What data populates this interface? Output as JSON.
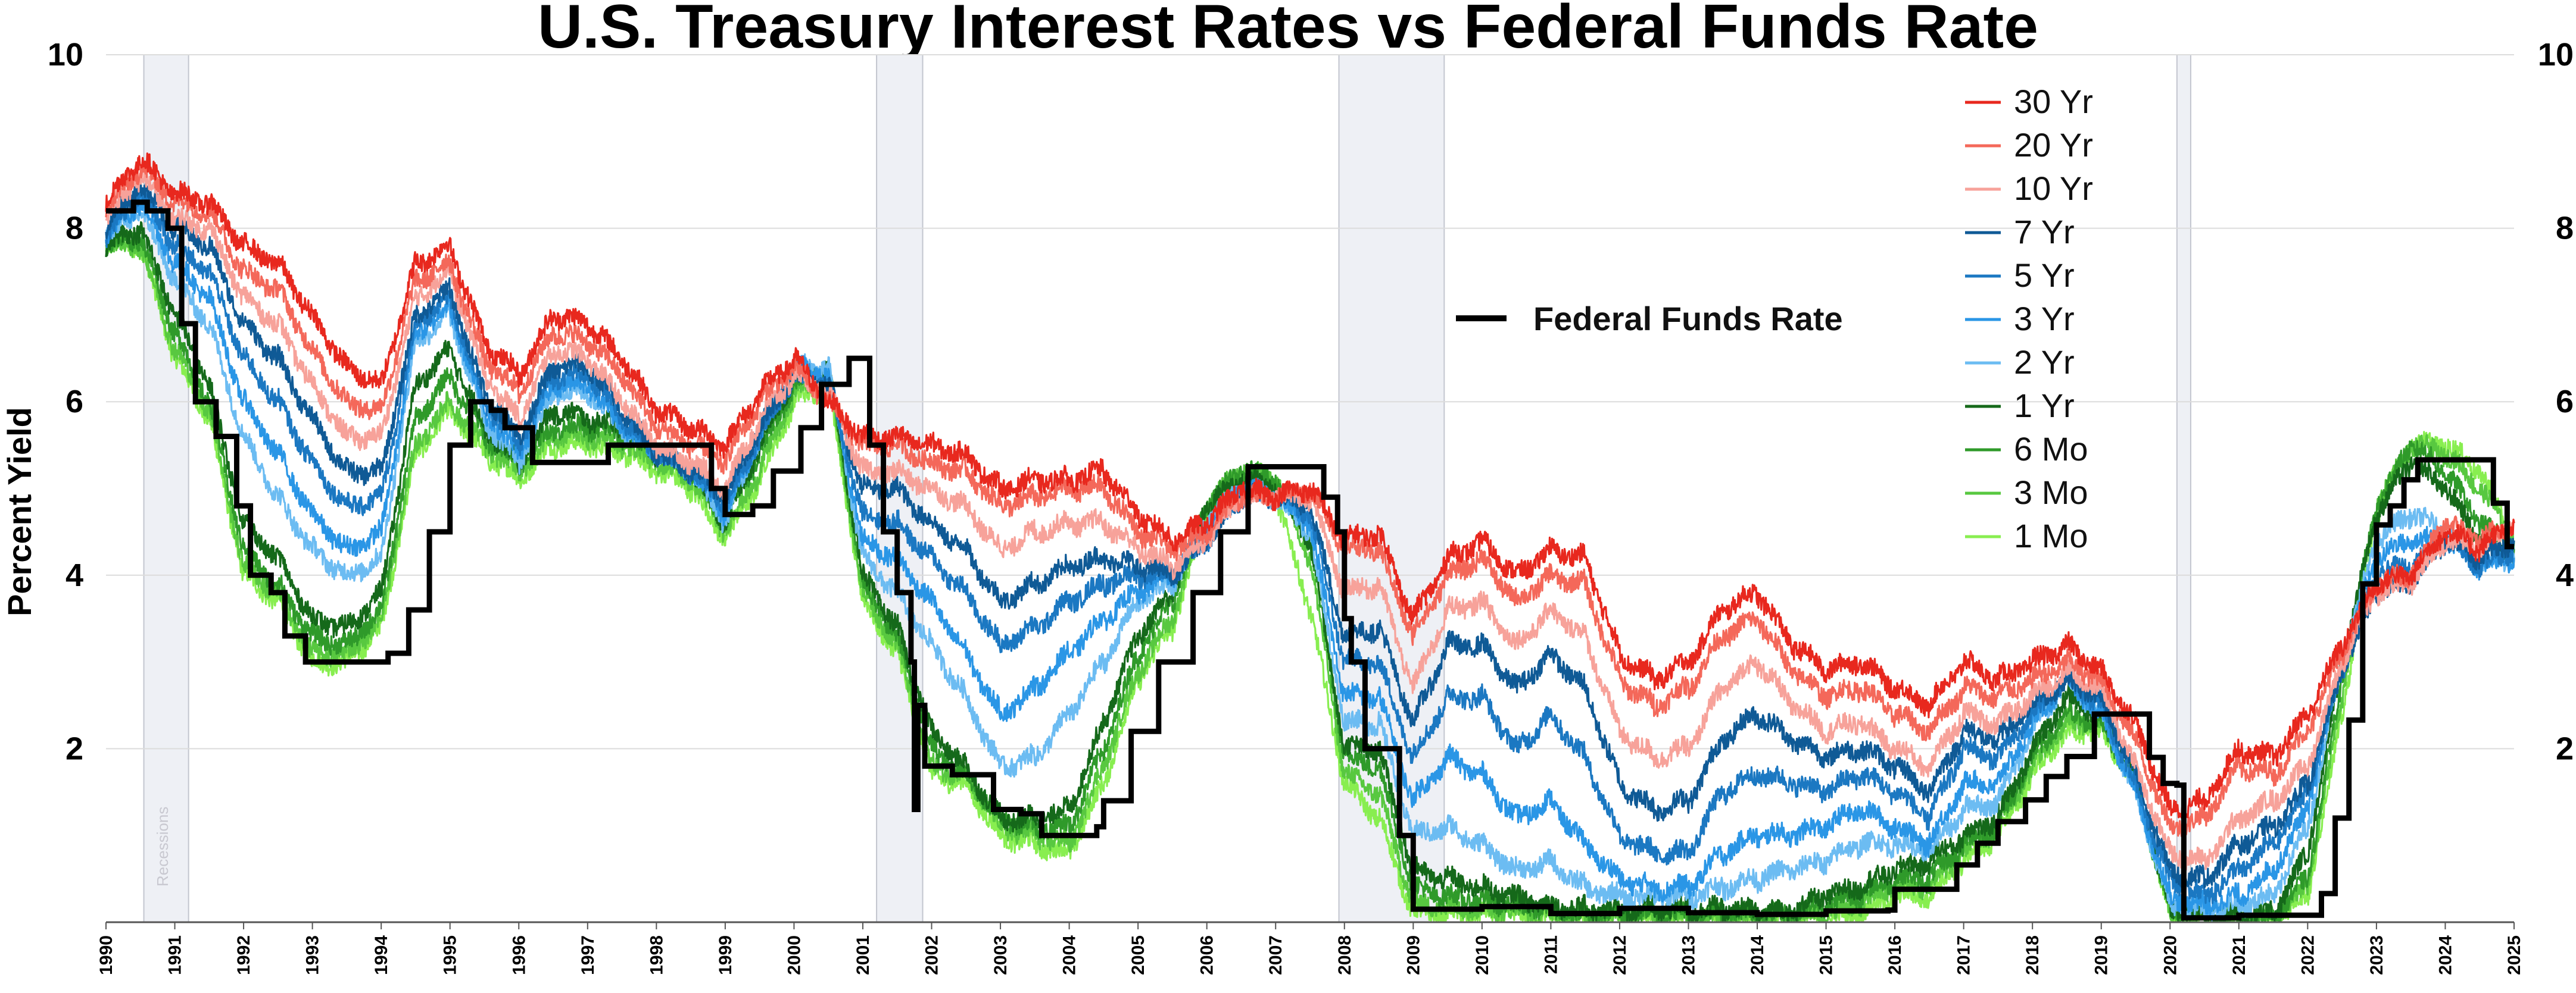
{
  "chart_data": {
    "type": "line",
    "title": "U.S. Treasury Interest Rates vs Federal Funds Rate",
    "ylabel": "Percent Yield",
    "xlabel": "",
    "xlim": [
      1990,
      2025
    ],
    "ylim": [
      0,
      10
    ],
    "yticks": [
      2,
      4,
      6,
      8,
      10
    ],
    "yticks_right": [
      2,
      4,
      6,
      8,
      10
    ],
    "xticks": [
      "1990",
      "1991",
      "1992",
      "1993",
      "1994",
      "1995",
      "1996",
      "1997",
      "1998",
      "1999",
      "2000",
      "2001",
      "2002",
      "2003",
      "2004",
      "2005",
      "2006",
      "2007",
      "2008",
      "2009",
      "2010",
      "2011",
      "2012",
      "2013",
      "2014",
      "2015",
      "2016",
      "2017",
      "2018",
      "2019",
      "2020",
      "2021",
      "2022",
      "2023",
      "2024",
      "2025"
    ],
    "grid": "horizontal",
    "legend_position": "top-right",
    "recession_label": "Recessions",
    "recessions": [
      [
        1990.55,
        1991.2
      ],
      [
        2001.2,
        2001.87
      ],
      [
        2007.92,
        2009.45
      ],
      [
        2020.1,
        2020.3
      ]
    ],
    "x": [
      1990,
      1990.5,
      1991,
      1991.5,
      1992,
      1992.5,
      1993,
      1993.5,
      1994,
      1994.5,
      1995,
      1995.5,
      1996,
      1996.5,
      1997,
      1997.5,
      1998,
      1998.5,
      1999,
      1999.5,
      2000,
      2000.5,
      2001,
      2001.5,
      2002,
      2002.5,
      2003,
      2003.5,
      2004,
      2004.5,
      2005,
      2005.5,
      2006,
      2006.5,
      2007,
      2007.5,
      2008,
      2008.5,
      2009,
      2009.5,
      2010,
      2010.5,
      2011,
      2011.5,
      2012,
      2012.5,
      2013,
      2013.5,
      2014,
      2014.5,
      2015,
      2015.5,
      2016,
      2016.5,
      2017,
      2017.5,
      2018,
      2018.5,
      2019,
      2019.5,
      2020,
      2020.5,
      2021,
      2021.5,
      2022,
      2022.5,
      2023,
      2023.5,
      2024,
      2024.5,
      2025
    ],
    "series": [
      {
        "name": "30 Yr",
        "color": "#e8281e",
        "values": [
          8.3,
          8.8,
          8.4,
          8.3,
          7.8,
          7.6,
          7.0,
          6.4,
          6.2,
          7.6,
          7.8,
          6.7,
          6.3,
          7.0,
          6.9,
          6.5,
          5.9,
          5.7,
          5.5,
          6.1,
          6.5,
          6.0,
          5.6,
          5.6,
          5.5,
          5.4,
          5.0,
          5.1,
          5.1,
          5.2,
          4.7,
          4.4,
          4.6,
          5.0,
          4.9,
          5.0,
          4.4,
          4.5,
          3.5,
          4.2,
          4.4,
          4.0,
          4.3,
          4.2,
          3.1,
          2.8,
          3.0,
          3.6,
          3.8,
          3.2,
          2.9,
          3.0,
          2.7,
          2.5,
          3.0,
          2.8,
          3.0,
          3.2,
          2.9,
          2.3,
          1.3,
          1.4,
          2.0,
          1.9,
          2.4,
          3.2,
          3.9,
          4.0,
          4.5,
          4.3,
          4.6
        ]
      },
      {
        "name": "20 Yr",
        "color": "#f4685a",
        "values": [
          8.2,
          8.7,
          8.3,
          8.2,
          7.5,
          7.3,
          6.6,
          6.0,
          5.9,
          7.4,
          7.6,
          6.5,
          6.1,
          6.8,
          6.7,
          6.3,
          5.7,
          5.5,
          5.3,
          6.0,
          6.4,
          6.0,
          5.5,
          5.5,
          5.3,
          5.2,
          4.8,
          4.9,
          5.0,
          5.0,
          4.5,
          4.3,
          4.5,
          4.9,
          4.9,
          5.0,
          4.3,
          4.3,
          3.3,
          4.0,
          4.2,
          3.7,
          4.0,
          3.9,
          2.8,
          2.5,
          2.7,
          3.3,
          3.5,
          2.9,
          2.6,
          2.7,
          2.4,
          2.2,
          2.7,
          2.6,
          2.8,
          3.0,
          2.8,
          2.1,
          1.1,
          1.2,
          1.8,
          1.7,
          2.2,
          3.1,
          3.9,
          4.0,
          4.6,
          4.4,
          4.6
        ]
      },
      {
        "name": "10 Yr",
        "color": "#f7a29a",
        "values": [
          8.1,
          8.6,
          8.1,
          8.0,
          7.2,
          6.9,
          6.2,
          5.6,
          5.6,
          7.2,
          7.5,
          6.3,
          5.8,
          6.6,
          6.5,
          6.0,
          5.5,
          5.3,
          5.0,
          5.8,
          6.3,
          6.1,
          5.2,
          5.2,
          5.0,
          4.8,
          4.3,
          4.5,
          4.6,
          4.6,
          4.3,
          4.1,
          4.4,
          4.9,
          4.9,
          4.9,
          3.8,
          3.9,
          2.7,
          3.6,
          3.7,
          3.2,
          3.6,
          3.3,
          2.2,
          1.9,
          2.0,
          2.7,
          3.0,
          2.5,
          2.2,
          2.3,
          2.0,
          1.8,
          2.4,
          2.3,
          2.6,
          2.9,
          2.7,
          1.8,
          0.8,
          0.7,
          1.2,
          1.4,
          1.8,
          3.0,
          3.8,
          3.9,
          4.4,
          4.3,
          4.6
        ]
      },
      {
        "name": "7 Yr",
        "color": "#0f5a96",
        "values": [
          8.0,
          8.5,
          8.0,
          7.8,
          6.9,
          6.5,
          5.8,
          5.2,
          5.2,
          7.0,
          7.3,
          6.1,
          5.6,
          6.4,
          6.4,
          5.9,
          5.4,
          5.2,
          4.9,
          5.7,
          6.3,
          6.2,
          5.0,
          5.0,
          4.6,
          4.3,
          3.7,
          3.9,
          4.1,
          4.2,
          4.1,
          4.0,
          4.4,
          4.9,
          4.9,
          4.8,
          3.3,
          3.4,
          2.3,
          3.2,
          3.2,
          2.7,
          3.1,
          2.7,
          1.6,
          1.3,
          1.4,
          2.1,
          2.4,
          2.1,
          1.9,
          2.0,
          1.8,
          1.5,
          2.2,
          2.1,
          2.5,
          2.8,
          2.6,
          1.7,
          0.6,
          0.5,
          0.9,
          1.1,
          1.6,
          2.9,
          3.8,
          3.9,
          4.4,
          4.2,
          4.4
        ]
      },
      {
        "name": "5 Yr",
        "color": "#1b78c2",
        "values": [
          7.9,
          8.4,
          7.8,
          7.5,
          6.5,
          6.0,
          5.3,
          4.8,
          4.9,
          6.9,
          7.2,
          6.0,
          5.5,
          6.3,
          6.3,
          5.8,
          5.4,
          5.2,
          4.8,
          5.6,
          6.3,
          6.2,
          4.7,
          4.6,
          4.2,
          3.8,
          3.2,
          3.4,
          3.7,
          3.9,
          4.0,
          4.0,
          4.4,
          4.9,
          4.9,
          4.7,
          3.0,
          3.0,
          1.9,
          2.6,
          2.6,
          2.0,
          2.4,
          1.9,
          1.0,
          0.8,
          0.8,
          1.5,
          1.7,
          1.6,
          1.5,
          1.7,
          1.5,
          1.2,
          2.0,
          1.9,
          2.4,
          2.8,
          2.5,
          1.6,
          0.5,
          0.3,
          0.6,
          0.9,
          1.5,
          2.9,
          4.0,
          4.1,
          4.4,
          4.1,
          4.3
        ]
      },
      {
        "name": "3 Yr",
        "color": "#2a96e6",
        "values": [
          7.9,
          8.3,
          7.6,
          7.2,
          6.0,
          5.4,
          4.7,
          4.3,
          4.5,
          6.8,
          7.1,
          5.9,
          5.4,
          6.2,
          6.2,
          5.7,
          5.4,
          5.2,
          4.7,
          5.6,
          6.4,
          6.3,
          4.4,
          4.2,
          3.7,
          3.1,
          2.4,
          2.7,
          3.1,
          3.5,
          3.8,
          4.0,
          4.5,
          5.0,
          4.9,
          4.6,
          2.6,
          2.6,
          1.4,
          1.9,
          1.7,
          1.2,
          1.4,
          0.9,
          0.5,
          0.4,
          0.4,
          0.8,
          1.0,
          1.0,
          1.1,
          1.3,
          1.1,
          0.9,
          1.6,
          1.6,
          2.3,
          2.8,
          2.4,
          1.5,
          0.3,
          0.2,
          0.3,
          0.6,
          1.3,
          3.0,
          4.2,
          4.4,
          4.4,
          4.1,
          4.2
        ]
      },
      {
        "name": "2 Yr",
        "color": "#6cbcf2",
        "values": [
          7.9,
          8.2,
          7.4,
          6.9,
          5.6,
          4.9,
          4.3,
          4.0,
          4.2,
          6.7,
          7.0,
          5.8,
          5.3,
          6.1,
          6.1,
          5.7,
          5.4,
          5.2,
          4.6,
          5.6,
          6.4,
          6.4,
          4.2,
          3.8,
          3.2,
          2.6,
          1.8,
          1.9,
          2.4,
          3.0,
          3.7,
          3.9,
          4.6,
          5.0,
          4.9,
          4.5,
          2.3,
          2.3,
          1.0,
          1.1,
          0.9,
          0.6,
          0.7,
          0.4,
          0.3,
          0.3,
          0.3,
          0.4,
          0.5,
          0.6,
          0.7,
          0.9,
          0.9,
          0.8,
          1.3,
          1.4,
          2.2,
          2.8,
          2.4,
          1.5,
          0.2,
          0.15,
          0.2,
          0.3,
          1.1,
          3.0,
          4.4,
          4.7,
          4.5,
          4.1,
          4.2
        ]
      },
      {
        "name": "1 Yr",
        "color": "#15691a",
        "values": [
          7.8,
          8.0,
          7.0,
          6.2,
          4.6,
          4.2,
          3.5,
          3.4,
          3.8,
          6.2,
          6.6,
          5.7,
          5.3,
          5.9,
          5.8,
          5.7,
          5.4,
          5.2,
          4.6,
          5.5,
          6.3,
          6.4,
          4.0,
          3.4,
          2.2,
          1.8,
          1.2,
          1.2,
          1.3,
          2.3,
          3.3,
          3.8,
          4.8,
          5.1,
          5.0,
          4.4,
          2.0,
          2.0,
          0.6,
          0.5,
          0.4,
          0.3,
          0.2,
          0.15,
          0.15,
          0.15,
          0.15,
          0.15,
          0.12,
          0.12,
          0.3,
          0.4,
          0.6,
          0.7,
          1.0,
          1.2,
          2.0,
          2.6,
          2.4,
          1.6,
          0.15,
          0.1,
          0.08,
          0.1,
          0.8,
          3.0,
          4.7,
          5.3,
          5.0,
          4.4,
          4.2
        ]
      },
      {
        "name": "6 Mo",
        "color": "#2f9a2a",
        "values": [
          7.8,
          7.9,
          6.8,
          6.0,
          4.3,
          3.9,
          3.3,
          3.2,
          3.6,
          5.8,
          6.3,
          5.6,
          5.3,
          5.7,
          5.7,
          5.6,
          5.4,
          5.2,
          4.6,
          5.4,
          6.2,
          6.4,
          3.9,
          3.3,
          2.0,
          1.7,
          1.2,
          1.1,
          1.1,
          2.0,
          3.1,
          3.7,
          4.8,
          5.2,
          5.1,
          4.4,
          1.9,
          1.8,
          0.4,
          0.3,
          0.25,
          0.2,
          0.15,
          0.1,
          0.1,
          0.1,
          0.1,
          0.1,
          0.08,
          0.08,
          0.2,
          0.3,
          0.5,
          0.5,
          0.9,
          1.1,
          1.9,
          2.4,
          2.3,
          1.6,
          0.12,
          0.08,
          0.06,
          0.06,
          0.5,
          2.8,
          4.8,
          5.5,
          5.2,
          4.6,
          4.3
        ]
      },
      {
        "name": "3 Mo",
        "color": "#58c840",
        "values": [
          7.8,
          7.8,
          6.6,
          5.9,
          4.1,
          3.8,
          3.1,
          3.1,
          3.5,
          5.5,
          6.0,
          5.5,
          5.2,
          5.6,
          5.6,
          5.5,
          5.3,
          5.1,
          4.5,
          5.2,
          6.1,
          6.3,
          3.8,
          3.2,
          1.8,
          1.7,
          1.1,
          1.0,
          0.9,
          1.8,
          2.9,
          3.5,
          4.8,
          5.2,
          5.1,
          4.2,
          1.7,
          1.5,
          0.2,
          0.2,
          0.15,
          0.15,
          0.1,
          0.05,
          0.08,
          0.08,
          0.06,
          0.06,
          0.04,
          0.04,
          0.1,
          0.2,
          0.4,
          0.4,
          0.8,
          1.1,
          1.8,
          2.3,
          2.3,
          1.6,
          0.1,
          0.06,
          0.04,
          0.04,
          0.4,
          2.6,
          4.8,
          5.5,
          5.4,
          5.0,
          4.4
        ]
      },
      {
        "name": "1 Mo",
        "color": "#88ee50",
        "values": [
          7.8,
          7.8,
          6.5,
          5.8,
          4.0,
          3.7,
          3.0,
          3.0,
          3.4,
          5.4,
          5.9,
          5.4,
          5.1,
          5.5,
          5.5,
          5.4,
          5.2,
          5.0,
          4.4,
          5.1,
          6.0,
          6.2,
          3.7,
          3.1,
          1.7,
          1.6,
          1.0,
          0.9,
          0.8,
          1.6,
          2.8,
          3.4,
          4.7,
          5.1,
          4.9,
          3.6,
          1.6,
          1.2,
          0.1,
          0.1,
          0.1,
          0.1,
          0.05,
          0.02,
          0.05,
          0.05,
          0.03,
          0.03,
          0.02,
          0.02,
          0.03,
          0.1,
          0.3,
          0.3,
          0.7,
          1.0,
          1.7,
          2.2,
          2.2,
          1.6,
          0.08,
          0.05,
          0.03,
          0.03,
          0.3,
          2.4,
          4.7,
          5.5,
          5.5,
          5.2,
          4.4
        ]
      }
    ],
    "fed_funds": {
      "name": "Federal Funds Rate",
      "color": "#000000",
      "x": [
        1990,
        1990.4,
        1990.6,
        1990.9,
        1991.1,
        1991.3,
        1991.6,
        1991.9,
        1992.1,
        1992.4,
        1992.6,
        1992.9,
        1993.5,
        1993.9,
        1994.1,
        1994.4,
        1994.7,
        1995.0,
        1995.3,
        1995.6,
        1995.8,
        1996.2,
        1996.6,
        1997.0,
        1997.3,
        1997.7,
        1998.2,
        1998.6,
        1998.8,
        1999.0,
        1999.4,
        1999.7,
        2000.1,
        2000.4,
        2000.8,
        2001.0,
        2001.1,
        2001.3,
        2001.5,
        2001.7,
        2001.75,
        2001.8,
        2001.9,
        2002.3,
        2002.9,
        2003.3,
        2003.6,
        2004.0,
        2004.4,
        2004.5,
        2004.9,
        2005.3,
        2005.8,
        2006.2,
        2006.6,
        2007.0,
        2007.5,
        2007.7,
        2007.9,
        2008.0,
        2008.1,
        2008.3,
        2008.7,
        2008.8,
        2009.0,
        2010.0,
        2011.0,
        2012.0,
        2013.0,
        2014.0,
        2015.0,
        2015.9,
        2016.0,
        2016.9,
        2017.2,
        2017.5,
        2017.9,
        2018.2,
        2018.5,
        2018.9,
        2019.5,
        2019.7,
        2019.9,
        2020.1,
        2020.2,
        2021.0,
        2022.0,
        2022.2,
        2022.4,
        2022.6,
        2022.8,
        2023.0,
        2023.2,
        2023.4,
        2023.6,
        2024.0,
        2024.5,
        2024.7,
        2024.9,
        2025.0
      ],
      "values": [
        8.2,
        8.3,
        8.2,
        8.0,
        6.9,
        6.0,
        5.6,
        4.8,
        4.0,
        3.8,
        3.3,
        3.0,
        3.0,
        3.0,
        3.1,
        3.6,
        4.5,
        5.5,
        6.0,
        5.9,
        5.7,
        5.3,
        5.3,
        5.3,
        5.5,
        5.5,
        5.5,
        5.5,
        5.0,
        4.7,
        4.8,
        5.2,
        5.7,
        6.2,
        6.5,
        6.5,
        5.5,
        4.5,
        3.8,
        3.0,
        1.3,
        2.5,
        1.8,
        1.7,
        1.3,
        1.25,
        1.0,
        1.0,
        1.1,
        1.4,
        2.2,
        3.0,
        3.8,
        4.5,
        5.25,
        5.25,
        5.25,
        4.9,
        4.5,
        3.5,
        3.0,
        2.0,
        2.0,
        1.0,
        0.15,
        0.18,
        0.1,
        0.16,
        0.11,
        0.09,
        0.13,
        0.14,
        0.38,
        0.66,
        0.91,
        1.16,
        1.41,
        1.68,
        1.91,
        2.4,
        2.4,
        1.9,
        1.6,
        1.58,
        0.05,
        0.08,
        0.08,
        0.33,
        1.2,
        2.33,
        3.9,
        4.58,
        4.8,
        5.1,
        5.33,
        5.33,
        5.33,
        4.83,
        4.33,
        4.33
      ]
    },
    "legend": [
      "30 Yr",
      "20 Yr",
      "10 Yr",
      "7 Yr",
      "5 Yr",
      "3 Yr",
      "2 Yr",
      "1 Yr",
      "6 Mo",
      "3 Mo",
      "1 Mo"
    ],
    "fed_legend_label": "Federal Funds Rate"
  }
}
